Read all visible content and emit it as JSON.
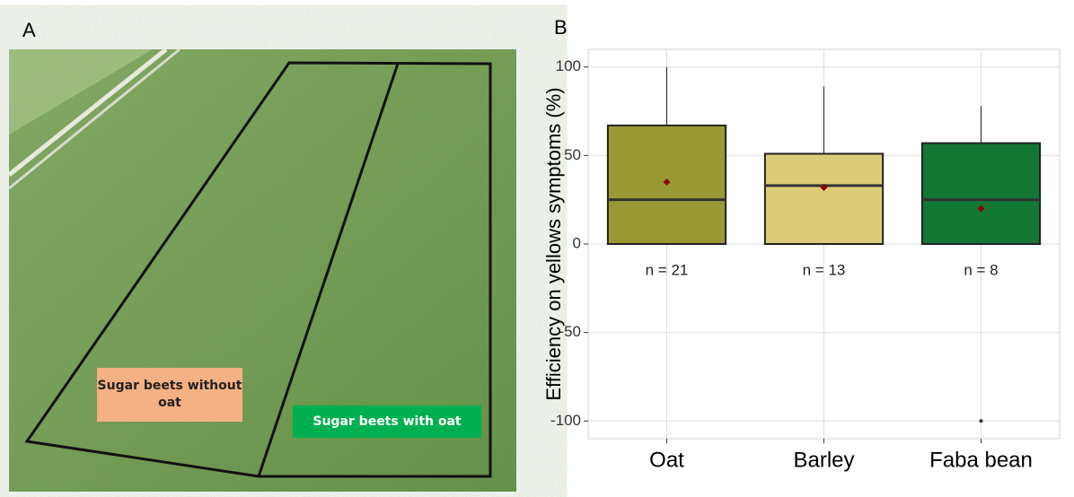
{
  "figure": {
    "panel_a_label": "A",
    "panel_b_label": "B",
    "photo_labels": [
      "Sugar beets without oat",
      "Sugar beets with oat"
    ]
  },
  "chart_data": {
    "type": "box",
    "y_label": "Efficiency on yellows symptoms (%)",
    "categories": [
      "Oat",
      "Barley",
      "Faba bean"
    ],
    "boxes": [
      {
        "name": "Oat",
        "color": "#999933",
        "min": 0,
        "q1": 0,
        "median": 25,
        "q3": 67,
        "max": 100,
        "mean": 35
      },
      {
        "name": "Barley",
        "color": "#ddcc77",
        "min": 0,
        "q1": 0,
        "median": 33,
        "q3": 51,
        "max": 89,
        "mean": 32
      },
      {
        "name": "Faba bean",
        "color": "#117733",
        "min": 0,
        "q1": 0,
        "median": 25,
        "q3": 57,
        "max": 78,
        "mean": 20,
        "outliers": [
          -100
        ]
      }
    ],
    "n_labels": [
      "n = 21",
      "n = 13",
      "n = 8"
    ],
    "mean_color": "#8b0000",
    "ylim": [
      -110,
      110
    ],
    "yticks": [
      -100,
      -50,
      0,
      50,
      100
    ],
    "grid": true
  }
}
